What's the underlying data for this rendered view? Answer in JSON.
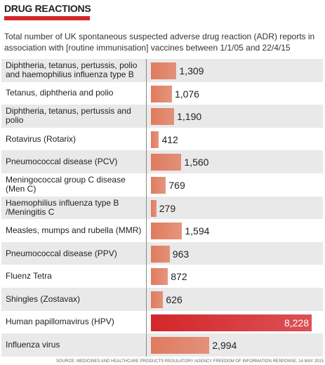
{
  "chart_data": {
    "type": "bar",
    "orientation": "horizontal",
    "title": "DRUG REACTIONS",
    "subtitle": "Total number of UK spontaneous suspected adverse drug reaction (ADR) reports in association with [routine immunisation] vaccines between 1/1/05 and 22/4/15",
    "categories": [
      "Diphtheria, tetanus, pertussis, polio and haemophilius influenza type B",
      "Tetanus, diphtheria and polio",
      "Diphtheria, tetanus, pertussis and polio",
      "Rotavirus (Rotarix)",
      "Pneumococcal disease (PCV)",
      "Meningococcal group C disease (Men C)",
      "Haemophilius influenza type B /Meningitis C",
      "Measles, mumps and rubella (MMR)",
      "Pneumococcal disease (PPV)",
      "Fluenz Tetra",
      "Shingles (Zostavax)",
      "Human papillomavirus (HPV)",
      "Influenza virus"
    ],
    "values": [
      1309,
      1076,
      1190,
      412,
      1560,
      769,
      279,
      1594,
      963,
      872,
      626,
      8228,
      2994
    ],
    "value_labels": [
      "1,309",
      "1,076",
      "1,190",
      "412",
      "1,560",
      "769",
      "279",
      "1,594",
      "963",
      "872",
      "626",
      "8,228",
      "2,994"
    ],
    "colors": [
      "#e07b5e",
      "#e07b5e",
      "#e07b5e",
      "#e07b5e",
      "#e07b5e",
      "#e07b5e",
      "#e07b5e",
      "#e07b5e",
      "#e07b5e",
      "#e07b5e",
      "#e07b5e",
      "#d3262a",
      "#e07b5e"
    ],
    "source": "SOURCE: MEDICINES AND HEALTHCARE PRODUCTS REGULATORY AGENCY FREEDOM OF INFORMATION RESPONSE, 14 MAY 2015"
  }
}
